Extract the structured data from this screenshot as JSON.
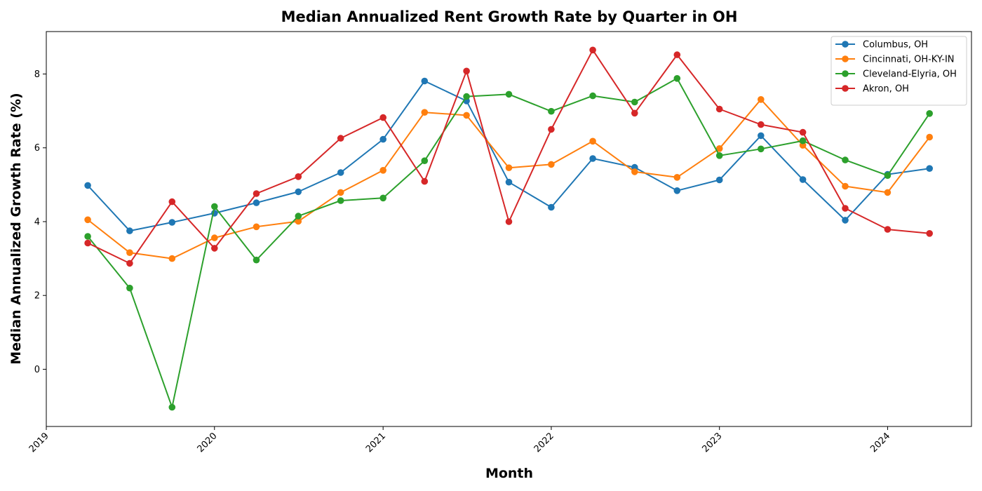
{
  "chart_data": {
    "type": "line",
    "title": "Median Annualized Rent Growth Rate by Quarter in OH",
    "xlabel": "Month",
    "ylabel": "Median Annualized Growth Rate (%)",
    "x": [
      "2019-04-01",
      "2019-07-01",
      "2019-10-01",
      "2020-01-01",
      "2020-04-01",
      "2020-07-01",
      "2020-10-01",
      "2021-01-01",
      "2021-04-01",
      "2021-07-01",
      "2021-10-01",
      "2022-01-01",
      "2022-04-01",
      "2022-07-01",
      "2022-10-01",
      "2023-01-01",
      "2023-04-01",
      "2023-07-01",
      "2023-10-01",
      "2024-01-01",
      "2024-04-01"
    ],
    "xticks": [
      "2019",
      "2020",
      "2021",
      "2022",
      "2023",
      "2024"
    ],
    "xlim": [
      "2019-01-01",
      "2024-07-01"
    ],
    "yticks": [
      0,
      2,
      4,
      6,
      8
    ],
    "ylim": [
      -1.55,
      9.15
    ],
    "grid": false,
    "legend_position": "top-right",
    "series": [
      {
        "name": "Columbus, OH",
        "color": "#1f77b4",
        "values": [
          4.98,
          3.75,
          3.98,
          4.23,
          4.51,
          4.81,
          5.33,
          6.23,
          7.81,
          7.27,
          5.07,
          4.39,
          5.71,
          5.47,
          4.84,
          5.13,
          6.33,
          5.14,
          4.04,
          5.28,
          5.44
        ]
      },
      {
        "name": "Cincinnati, OH-KY-IN",
        "color": "#ff7f0e",
        "values": [
          4.05,
          3.16,
          3.0,
          3.56,
          3.86,
          4.01,
          4.79,
          5.39,
          6.96,
          6.88,
          5.46,
          5.55,
          6.18,
          5.35,
          5.2,
          5.98,
          7.31,
          6.07,
          4.96,
          4.79,
          6.29
        ]
      },
      {
        "name": "Cleveland-Elyria, OH",
        "color": "#2ca02c",
        "values": [
          3.6,
          2.2,
          -1.03,
          4.41,
          2.96,
          4.15,
          4.57,
          4.64,
          5.65,
          7.39,
          7.45,
          6.99,
          7.41,
          7.24,
          7.88,
          5.79,
          5.97,
          6.19,
          5.67,
          5.25,
          6.93
        ]
      },
      {
        "name": "Akron, OH",
        "color": "#d62728",
        "values": [
          3.42,
          2.87,
          4.54,
          3.28,
          4.76,
          5.22,
          6.26,
          6.82,
          5.09,
          8.08,
          4.0,
          6.5,
          8.65,
          6.94,
          8.52,
          7.05,
          6.63,
          6.42,
          4.36,
          3.79,
          3.68
        ]
      }
    ]
  }
}
